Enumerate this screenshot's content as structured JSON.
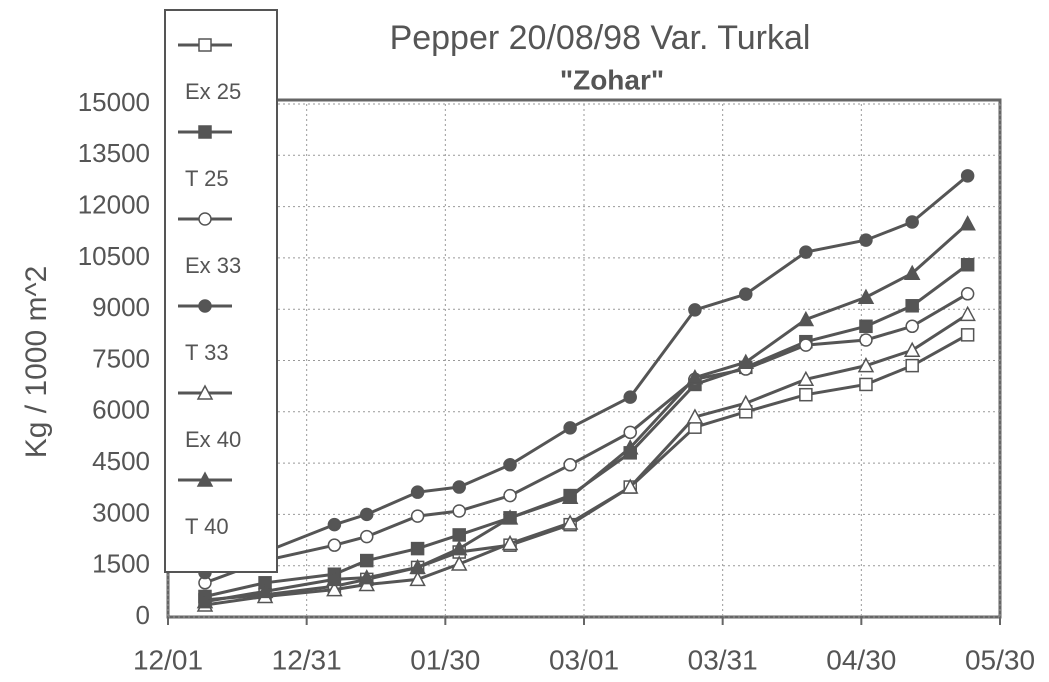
{
  "chart_data": {
    "type": "line",
    "title": "Pepper 20/08/98 Var. Turkal",
    "subtitle": "\"Zohar\"",
    "y_label": "Kg / 1000 m^2",
    "x": [
      8,
      21,
      36,
      43,
      54,
      63,
      74,
      87,
      100,
      114,
      125,
      138,
      151,
      161,
      173
    ],
    "xlim": [
      0,
      180
    ],
    "xticks": [
      {
        "value": 0,
        "label": "12/01"
      },
      {
        "value": 30,
        "label": "12/31"
      },
      {
        "value": 60,
        "label": "01/30"
      },
      {
        "value": 90,
        "label": "03/01"
      },
      {
        "value": 120,
        "label": "03/31"
      },
      {
        "value": 150,
        "label": "04/30"
      },
      {
        "value": 180,
        "label": "05/30"
      }
    ],
    "ylim": [
      0,
      15000
    ],
    "yticks": [
      0,
      1500,
      3000,
      4500,
      6000,
      7500,
      9000,
      10500,
      12000,
      13500,
      15000
    ],
    "grid": true,
    "legend": "left",
    "series": [
      {
        "name": "Ex 25",
        "color": "#555555",
        "marker": "square-open",
        "values": [
          500,
          650,
          900,
          1100,
          1450,
          1900,
          2100,
          2700,
          3800,
          5550,
          6000,
          6500,
          6800,
          7350,
          8250
        ]
      },
      {
        "name": "T 25",
        "color": "#555555",
        "marker": "square-filled",
        "values": [
          600,
          1000,
          1250,
          1650,
          2000,
          2400,
          2900,
          3550,
          4800,
          6800,
          7300,
          8050,
          8500,
          9100,
          10300
        ]
      },
      {
        "name": "Ex 33",
        "color": "#555555",
        "marker": "circle-open",
        "values": [
          1000,
          1650,
          2100,
          2350,
          2950,
          3100,
          3550,
          4450,
          5400,
          6950,
          7250,
          7950,
          8100,
          8500,
          9450
        ]
      },
      {
        "name": "T 33",
        "color": "#555555",
        "marker": "circle-filled",
        "values": [
          1300,
          1900,
          2700,
          3000,
          3650,
          3800,
          4450,
          5530,
          6430,
          8980,
          9440,
          10670,
          11020,
          11550,
          12900
        ]
      },
      {
        "name": "Ex 40",
        "color": "#555555",
        "marker": "triangle-open",
        "values": [
          350,
          600,
          800,
          950,
          1100,
          1550,
          2150,
          2750,
          3800,
          5850,
          6250,
          6950,
          7350,
          7800,
          8850
        ]
      },
      {
        "name": "T 40",
        "color": "#555555",
        "marker": "triangle-filled",
        "values": [
          450,
          750,
          1100,
          1150,
          1450,
          2000,
          2900,
          3500,
          4950,
          7000,
          7450,
          8700,
          9350,
          10050,
          11500
        ]
      }
    ]
  }
}
